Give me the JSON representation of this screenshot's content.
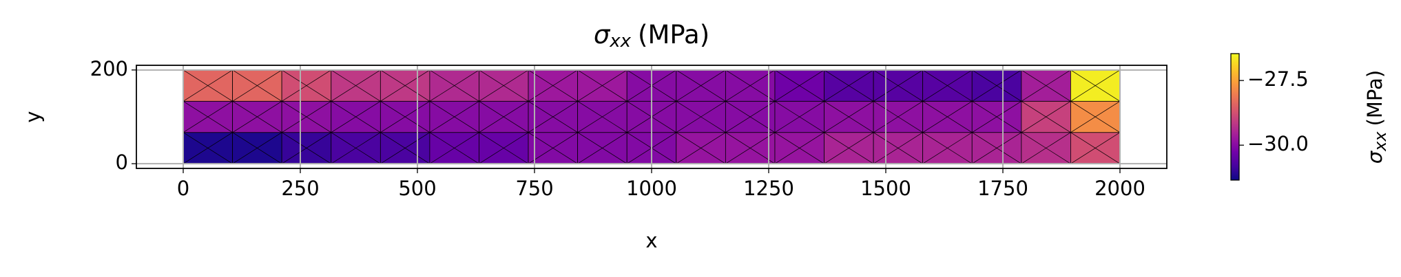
{
  "chart_data": {
    "type": "mesh",
    "title": [
      "σ",
      "xx",
      "(MPa)"
    ],
    "x_label": "x",
    "y_label": "y",
    "x_edges": [
      0,
      105.3,
      210.5,
      315.8,
      421.1,
      526.3,
      631.6,
      736.8,
      842.1,
      947.4,
      1052.6,
      1157.9,
      1263.2,
      1368.4,
      1473.7,
      1578.9,
      1684.2,
      1789.5,
      1894.7,
      2000
    ],
    "y_edges": [
      0,
      66.7,
      133.3,
      200
    ],
    "values": [
      [
        -31.2,
        -31.2,
        -30.95,
        -30.75,
        -30.75,
        -30.4,
        -30.4,
        -30.05,
        -30.05,
        -30.05,
        -29.8,
        -29.8,
        -29.8,
        -29.5,
        -29.5,
        -29.5,
        -29.5,
        -29.3,
        -28.8
      ],
      [
        -29.9,
        -29.9,
        -29.9,
        -30.0,
        -30.0,
        -30.0,
        -30.0,
        -30.0,
        -30.0,
        -30.0,
        -30.0,
        -30.0,
        -30.0,
        -29.9,
        -29.9,
        -29.9,
        -29.9,
        -29.0,
        -27.8
      ],
      [
        -28.4,
        -28.4,
        -28.8,
        -29.15,
        -29.15,
        -29.4,
        -29.4,
        -29.7,
        -29.7,
        -30.0,
        -30.0,
        -30.0,
        -30.3,
        -30.6,
        -30.6,
        -30.6,
        -30.75,
        -29.6,
        -26.6
      ]
    ],
    "colormap": "plasma",
    "clim": [
      -31.35,
      -26.46
    ],
    "colorbar_label": [
      "σ",
      "xx",
      "(MPa)"
    ],
    "colorbar_ticks": [
      {
        "value": -27.5,
        "label": "−27.5"
      },
      {
        "value": -30.0,
        "label": "−30.0"
      }
    ],
    "xlim": [
      -100,
      2100
    ],
    "ylim": [
      -10,
      210
    ],
    "xticks": [
      0,
      250,
      500,
      750,
      1000,
      1250,
      1500,
      1750,
      2000
    ],
    "yticks": [
      0,
      200
    ],
    "grid": true
  }
}
